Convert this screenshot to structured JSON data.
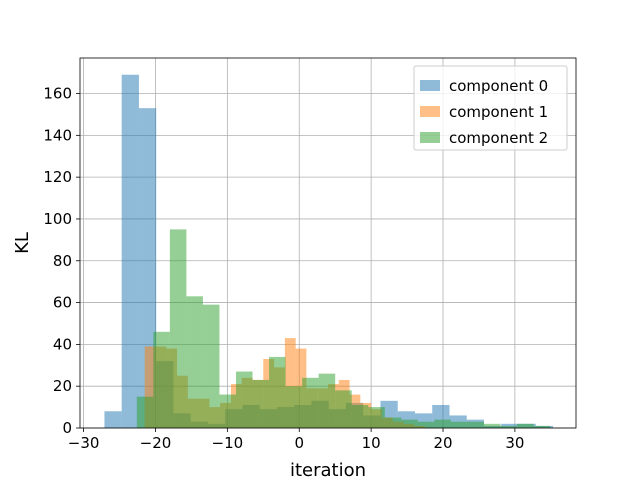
{
  "chart_data": {
    "type": "bar",
    "subtype": "overlaid-histogram",
    "xlabel": "iteration",
    "ylabel": "KL",
    "xlim": [
      -30.5,
      38.5
    ],
    "ylim": [
      0,
      177
    ],
    "xticks": [
      -30,
      -20,
      -10,
      0,
      10,
      20,
      30
    ],
    "yticks": [
      0,
      20,
      40,
      60,
      80,
      100,
      120,
      140,
      160
    ],
    "grid": true,
    "legend_position": "top-right",
    "series": [
      {
        "name": "component 0",
        "color": "#1f77b4",
        "opacity": 0.5,
        "bins": [
          {
            "x0": -27.1,
            "x1": -24.7,
            "count": 8
          },
          {
            "x0": -24.7,
            "x1": -22.3,
            "count": 169
          },
          {
            "x0": -22.3,
            "x1": -19.9,
            "count": 153
          },
          {
            "x0": -19.9,
            "x1": -17.5,
            "count": 32
          },
          {
            "x0": -17.5,
            "x1": -15.1,
            "count": 7
          },
          {
            "x0": -15.1,
            "x1": -12.7,
            "count": 3
          },
          {
            "x0": -12.7,
            "x1": -10.3,
            "count": 2
          },
          {
            "x0": -10.3,
            "x1": -7.9,
            "count": 9
          },
          {
            "x0": -7.9,
            "x1": -5.5,
            "count": 11
          },
          {
            "x0": -5.5,
            "x1": -3.1,
            "count": 9
          },
          {
            "x0": -3.1,
            "x1": -0.7,
            "count": 10
          },
          {
            "x0": -0.7,
            "x1": 1.7,
            "count": 11
          },
          {
            "x0": 1.7,
            "x1": 4.1,
            "count": 13
          },
          {
            "x0": 4.1,
            "x1": 6.5,
            "count": 9
          },
          {
            "x0": 6.5,
            "x1": 8.9,
            "count": 12
          },
          {
            "x0": 8.9,
            "x1": 11.3,
            "count": 6
          },
          {
            "x0": 11.3,
            "x1": 13.7,
            "count": 13
          },
          {
            "x0": 13.7,
            "x1": 16.1,
            "count": 8
          },
          {
            "x0": 16.1,
            "x1": 18.5,
            "count": 7
          },
          {
            "x0": 18.5,
            "x1": 20.9,
            "count": 11
          },
          {
            "x0": 20.9,
            "x1": 23.3,
            "count": 6
          },
          {
            "x0": 23.3,
            "x1": 25.7,
            "count": 4
          },
          {
            "x0": 25.7,
            "x1": 28.1,
            "count": 1
          },
          {
            "x0": 28.1,
            "x1": 30.5,
            "count": 2
          },
          {
            "x0": 30.5,
            "x1": 32.9,
            "count": 2
          },
          {
            "x0": 32.9,
            "x1": 35.3,
            "count": 1
          }
        ]
      },
      {
        "name": "component 1",
        "color": "#ff7f0e",
        "opacity": 0.5,
        "bins": [
          {
            "x0": -21.5,
            "x1": -20.0,
            "count": 39
          },
          {
            "x0": -20.0,
            "x1": -18.5,
            "count": 39
          },
          {
            "x0": -18.5,
            "x1": -17.0,
            "count": 38
          },
          {
            "x0": -17.0,
            "x1": -15.5,
            "count": 25
          },
          {
            "x0": -15.5,
            "x1": -14.0,
            "count": 14
          },
          {
            "x0": -14.0,
            "x1": -12.5,
            "count": 14
          },
          {
            "x0": -12.5,
            "x1": -11.0,
            "count": 10
          },
          {
            "x0": -11.0,
            "x1": -9.5,
            "count": 12
          },
          {
            "x0": -9.5,
            "x1": -8.0,
            "count": 21
          },
          {
            "x0": -8.0,
            "x1": -6.5,
            "count": 24
          },
          {
            "x0": -6.5,
            "x1": -5.0,
            "count": 23
          },
          {
            "x0": -5.0,
            "x1": -3.5,
            "count": 33
          },
          {
            "x0": -3.5,
            "x1": -2.0,
            "count": 29
          },
          {
            "x0": -2.0,
            "x1": -0.5,
            "count": 43
          },
          {
            "x0": -0.5,
            "x1": 1.0,
            "count": 38
          },
          {
            "x0": 1.0,
            "x1": 2.5,
            "count": 19
          },
          {
            "x0": 2.5,
            "x1": 4.0,
            "count": 19
          },
          {
            "x0": 4.0,
            "x1": 5.5,
            "count": 21
          },
          {
            "x0": 5.5,
            "x1": 7.0,
            "count": 23
          },
          {
            "x0": 7.0,
            "x1": 8.5,
            "count": 16
          },
          {
            "x0": 8.5,
            "x1": 10.0,
            "count": 12
          },
          {
            "x0": 10.0,
            "x1": 11.5,
            "count": 9
          },
          {
            "x0": 11.5,
            "x1": 13.0,
            "count": 5
          },
          {
            "x0": 13.0,
            "x1": 14.5,
            "count": 3
          },
          {
            "x0": 14.5,
            "x1": 16.0,
            "count": 2
          },
          {
            "x0": 16.0,
            "x1": 17.5,
            "count": 1
          }
        ]
      },
      {
        "name": "component 2",
        "color": "#2ca02c",
        "opacity": 0.5,
        "bins": [
          {
            "x0": -22.6,
            "x1": -20.3,
            "count": 15
          },
          {
            "x0": -20.3,
            "x1": -18.0,
            "count": 46
          },
          {
            "x0": -18.0,
            "x1": -15.7,
            "count": 95
          },
          {
            "x0": -15.7,
            "x1": -13.4,
            "count": 63
          },
          {
            "x0": -13.4,
            "x1": -11.1,
            "count": 59
          },
          {
            "x0": -11.1,
            "x1": -8.8,
            "count": 16
          },
          {
            "x0": -8.8,
            "x1": -6.5,
            "count": 27
          },
          {
            "x0": -6.5,
            "x1": -4.2,
            "count": 23
          },
          {
            "x0": -4.2,
            "x1": -1.9,
            "count": 34
          },
          {
            "x0": -1.9,
            "x1": 0.4,
            "count": 20
          },
          {
            "x0": 0.4,
            "x1": 2.7,
            "count": 24
          },
          {
            "x0": 2.7,
            "x1": 5.0,
            "count": 26
          },
          {
            "x0": 5.0,
            "x1": 7.3,
            "count": 18
          },
          {
            "x0": 7.3,
            "x1": 9.6,
            "count": 11
          },
          {
            "x0": 9.6,
            "x1": 11.9,
            "count": 10
          },
          {
            "x0": 11.9,
            "x1": 14.2,
            "count": 5
          },
          {
            "x0": 14.2,
            "x1": 16.5,
            "count": 4
          },
          {
            "x0": 16.5,
            "x1": 18.8,
            "count": 3
          },
          {
            "x0": 18.8,
            "x1": 21.1,
            "count": 4
          },
          {
            "x0": 21.1,
            "x1": 23.4,
            "count": 3
          },
          {
            "x0": 23.4,
            "x1": 25.7,
            "count": 3
          },
          {
            "x0": 25.7,
            "x1": 28.0,
            "count": 2
          },
          {
            "x0": 28.0,
            "x1": 30.3,
            "count": 1
          },
          {
            "x0": 30.3,
            "x1": 32.6,
            "count": 2
          },
          {
            "x0": 32.6,
            "x1": 34.9,
            "count": 1
          }
        ]
      }
    ]
  }
}
